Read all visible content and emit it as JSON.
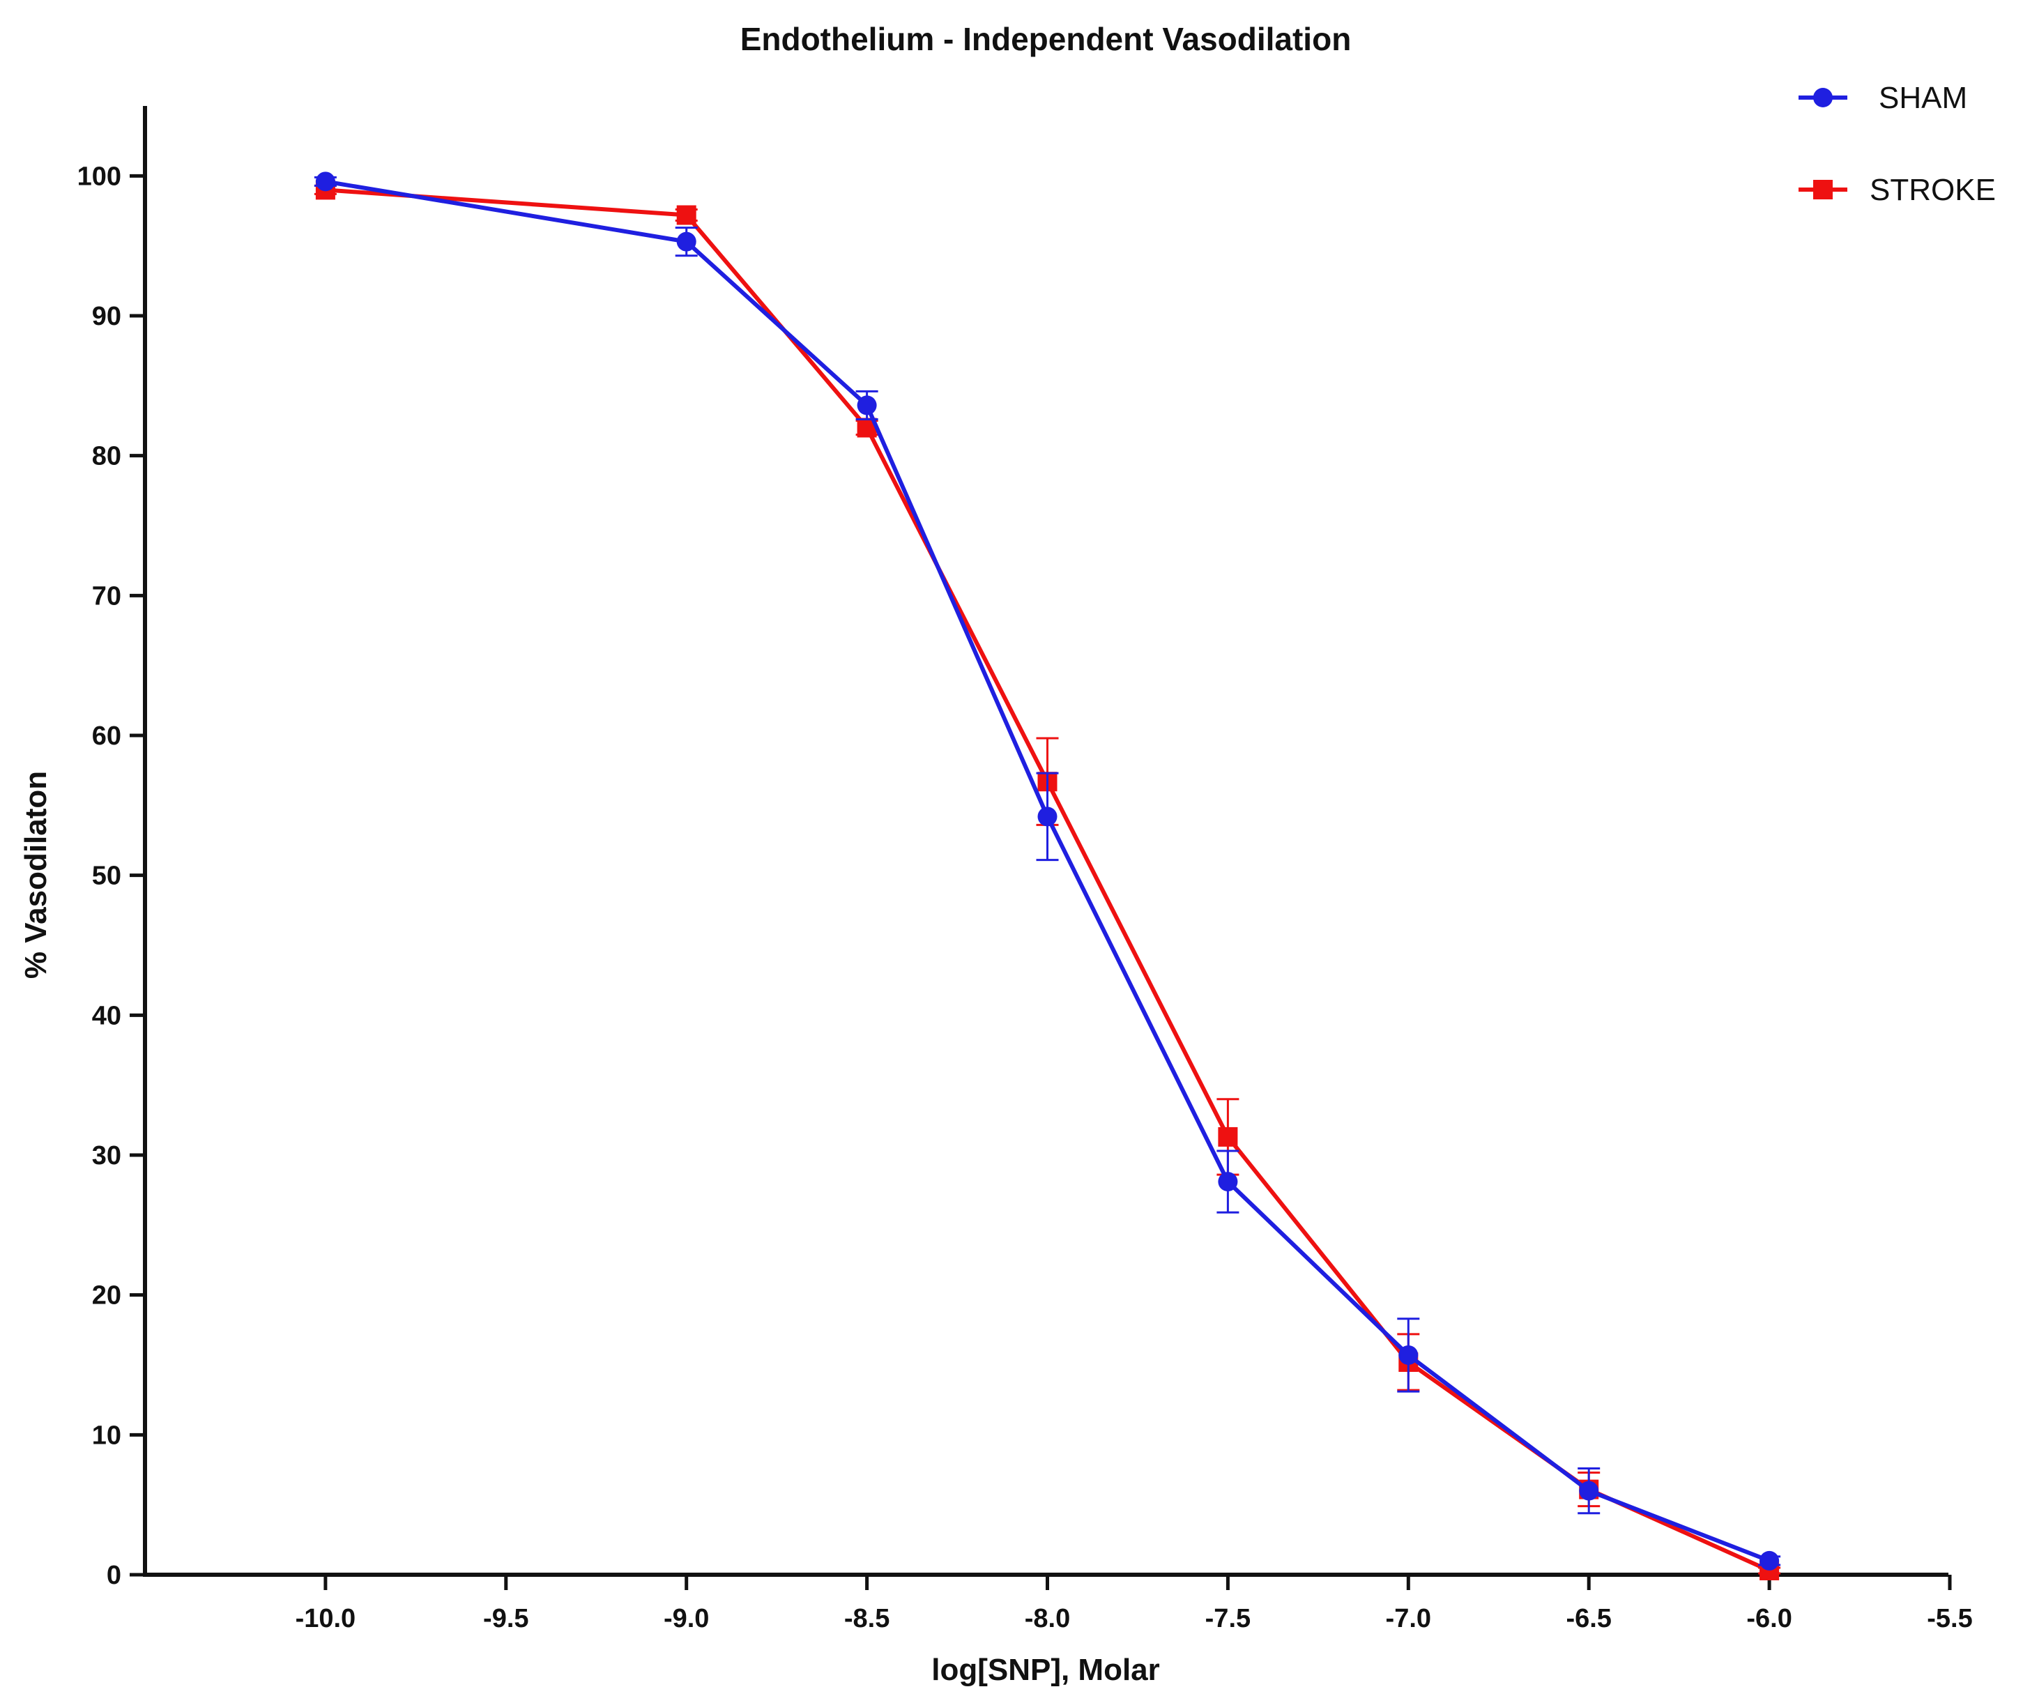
{
  "chart_data": {
    "type": "line",
    "title": "Endothelium - Independent Vasodilation",
    "xlabel": "log[SNP], Molar",
    "ylabel": "% Vasodilaton",
    "xlim": [
      -10.5,
      -5.5
    ],
    "ylim": [
      0,
      105
    ],
    "x_ticks": [
      -10.0,
      -9.5,
      -9.0,
      -8.5,
      -8.0,
      -7.5,
      -7.0,
      -6.5,
      -6.0,
      -5.5
    ],
    "x_tick_labels": [
      "-10.0",
      "-9.5",
      "-9.0",
      "-8.5",
      "-8.0",
      "-7.5",
      "-7.0",
      "-6.5",
      "-6.0",
      "-5.5"
    ],
    "y_ticks": [
      0,
      10,
      20,
      30,
      40,
      50,
      60,
      70,
      80,
      90,
      100
    ],
    "y_tick_labels": [
      "0",
      "10",
      "20",
      "30",
      "40",
      "50",
      "60",
      "70",
      "80",
      "90",
      "100"
    ],
    "grid": false,
    "legend_position": "top-right",
    "x": [
      -10.0,
      -9.0,
      -8.5,
      -8.0,
      -7.5,
      -7.0,
      -6.5,
      -6.0
    ],
    "series": [
      {
        "name": "SHAM",
        "color": "#1f1fe0",
        "marker": "circle",
        "values": [
          99.6,
          95.3,
          83.6,
          54.2,
          28.1,
          15.7,
          6.0,
          1.0
        ],
        "error": [
          0.3,
          1.0,
          1.0,
          3.1,
          2.2,
          2.6,
          1.6,
          0.3
        ]
      },
      {
        "name": "STROKE",
        "color": "#ee1111",
        "marker": "square",
        "values": [
          99.0,
          97.2,
          82.0,
          56.7,
          31.3,
          15.2,
          6.1,
          0.3
        ],
        "error": [
          0.3,
          0.4,
          0.5,
          3.1,
          2.7,
          2.0,
          1.2,
          0.2
        ]
      }
    ]
  }
}
